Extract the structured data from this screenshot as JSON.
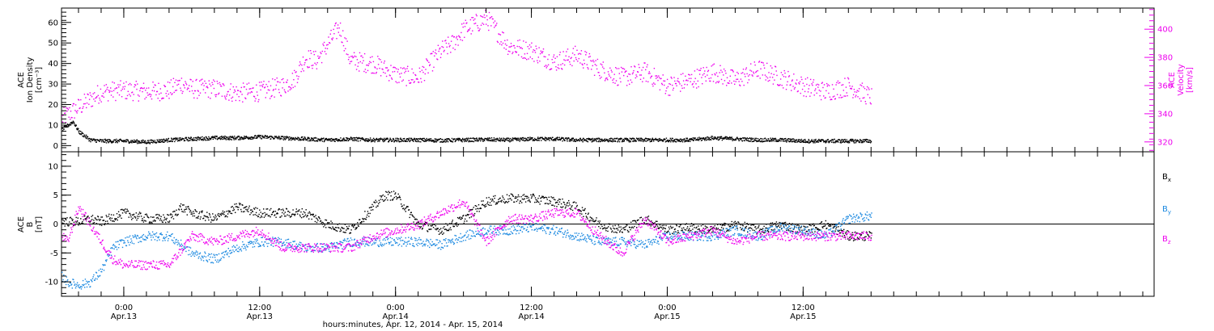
{
  "colors": {
    "black": "#000000",
    "magenta": "#ee00ee",
    "blue": "#1a88e0"
  },
  "x_axis": {
    "title": "hours:minutes, Apr. 12, 2014 - Apr. 15, 2014",
    "range_hours": [
      -5.5,
      91.0
    ],
    "ticks": [
      {
        "hour": 0,
        "time": "0:00",
        "date": "Apr.13"
      },
      {
        "hour": 12,
        "time": "12:00",
        "date": "Apr.13"
      },
      {
        "hour": 24,
        "time": "0:00",
        "date": "Apr.14"
      },
      {
        "hour": 36,
        "time": "12:00",
        "date": "Apr.14"
      },
      {
        "hour": 48,
        "time": "0:00",
        "date": "Apr.15"
      },
      {
        "hour": 60,
        "time": "12:00",
        "date": "Apr.15"
      }
    ]
  },
  "chart_data": [
    {
      "type": "scatter",
      "panel": "plasma",
      "ylabel_left": [
        "ACE",
        "Ion Density",
        "[cm⁻³]"
      ],
      "ylabel_right": [
        "ACE",
        "Velocity",
        "[km/s]"
      ],
      "ylim_left": [
        -3,
        67
      ],
      "ylim_right": [
        313,
        415
      ],
      "yticks_left": [
        0,
        10,
        20,
        30,
        40,
        50,
        60
      ],
      "yticks_right": [
        320,
        340,
        360,
        380,
        400
      ],
      "x_range_hours": [
        -5.5,
        66.5
      ],
      "series": [
        {
          "name": "Velocity",
          "axis": "right",
          "color": "magenta",
          "x": [
            -5.5,
            -4,
            -2,
            0,
            2,
            4,
            5,
            6,
            8,
            10,
            12,
            14,
            15,
            16,
            17,
            18,
            19,
            20,
            22,
            24,
            26,
            28,
            29,
            30,
            32,
            34,
            36,
            38,
            40,
            42,
            44,
            46,
            48,
            50,
            52,
            54,
            56,
            58,
            60,
            62,
            64,
            66
          ],
          "y": [
            337,
            345,
            356,
            357,
            356,
            357,
            362,
            358,
            358,
            355,
            356,
            360,
            365,
            380,
            378,
            390,
            402,
            378,
            376,
            368,
            366,
            385,
            390,
            400,
            408,
            388,
            385,
            377,
            382,
            372,
            366,
            370,
            360,
            364,
            370,
            364,
            372,
            366,
            360,
            356,
            360,
            352
          ]
        },
        {
          "name": "Ion Density",
          "axis": "left",
          "color": "black",
          "x": [
            -5.5,
            -5,
            -4.5,
            -4,
            -3,
            -2,
            0,
            2,
            4,
            6,
            8,
            10,
            12,
            14,
            16,
            18,
            20,
            22,
            24,
            26,
            28,
            30,
            32,
            34,
            36,
            38,
            40,
            42,
            44,
            46,
            48,
            50,
            52,
            54,
            56,
            58,
            60,
            62,
            64,
            66
          ],
          "y": [
            8,
            10,
            12,
            7,
            3,
            2.5,
            2.5,
            2,
            3,
            3.5,
            4,
            4,
            4.5,
            4,
            3.5,
            3,
            3.5,
            3,
            3,
            3,
            2.8,
            3,
            3.2,
            3,
            3.5,
            3.5,
            3,
            3,
            3,
            3,
            3,
            3,
            4,
            3.5,
            3,
            3,
            2.5,
            2.5,
            2.5,
            2.5
          ]
        }
      ]
    },
    {
      "type": "scatter",
      "panel": "magnetic",
      "ylabel_left": [
        "ACE",
        "B",
        "[nT]"
      ],
      "ylim": [
        -12.5,
        12.5
      ],
      "yticks": [
        -10,
        -5,
        0,
        5,
        10
      ],
      "x_range_hours": [
        -5.5,
        66.5
      ],
      "legend": [
        "Bx",
        "By",
        "Bz"
      ],
      "zero_line": true,
      "series": [
        {
          "name": "Bx",
          "color": "black",
          "x": [
            -5.5,
            -4,
            -3,
            -2,
            0,
            2,
            4,
            5,
            6,
            8,
            10,
            12,
            14,
            16,
            18,
            20,
            22,
            23,
            24,
            26,
            28,
            30,
            32,
            34,
            36,
            38,
            40,
            42,
            44,
            46,
            48,
            50,
            52,
            54,
            56,
            58,
            60,
            62,
            64,
            66
          ],
          "y": [
            0.5,
            0.5,
            1,
            0.5,
            2,
            1,
            1,
            3,
            2,
            1,
            3,
            2,
            2,
            2,
            0,
            -1,
            3,
            5,
            5,
            0,
            -1,
            1,
            4,
            4.5,
            4.5,
            4,
            3,
            0,
            -1,
            1,
            -1,
            -0.5,
            -1,
            0,
            -1,
            0,
            -1,
            0,
            -2,
            -2
          ]
        },
        {
          "name": "By",
          "color": "blue",
          "x": [
            -5.5,
            -5,
            -4,
            -3,
            -2,
            -1,
            0,
            2,
            4,
            6,
            8,
            10,
            12,
            14,
            16,
            18,
            20,
            22,
            24,
            26,
            28,
            30,
            32,
            34,
            36,
            38,
            40,
            42,
            44,
            46,
            48,
            50,
            52,
            54,
            56,
            58,
            60,
            62,
            64,
            66
          ],
          "y": [
            -9,
            -10,
            -10.5,
            -10,
            -8,
            -4,
            -3,
            -2,
            -2,
            -5,
            -6,
            -4,
            -3,
            -3,
            -4,
            -4,
            -3,
            -3,
            -3,
            -3,
            -3.5,
            -2,
            -1,
            -1,
            -0.5,
            -1,
            -2,
            -3,
            -3,
            -3.5,
            -2,
            -2,
            -2,
            -1,
            -2,
            -0.5,
            -1,
            -2,
            1,
            1.5
          ]
        },
        {
          "name": "Bz",
          "color": "magenta",
          "x": [
            -5.5,
            -5,
            -4,
            -3,
            -2,
            -1,
            0,
            2,
            4,
            6,
            8,
            10,
            12,
            14,
            16,
            18,
            20,
            22,
            24,
            26,
            28,
            30,
            32,
            34,
            36,
            38,
            40,
            42,
            44,
            46,
            48,
            50,
            52,
            54,
            56,
            58,
            60,
            62,
            64,
            66
          ],
          "y": [
            -2,
            -3,
            3,
            0,
            -3,
            -6,
            -7,
            -7,
            -7,
            -2,
            -3,
            -2,
            -1,
            -4,
            -4,
            -4,
            -4,
            -2,
            -1,
            0,
            2,
            4,
            -3,
            1,
            1,
            2,
            2,
            -2,
            -5,
            1,
            -3,
            -2,
            -1,
            -3,
            -2,
            -2,
            -2,
            -2,
            -2,
            -2
          ]
        }
      ]
    }
  ]
}
